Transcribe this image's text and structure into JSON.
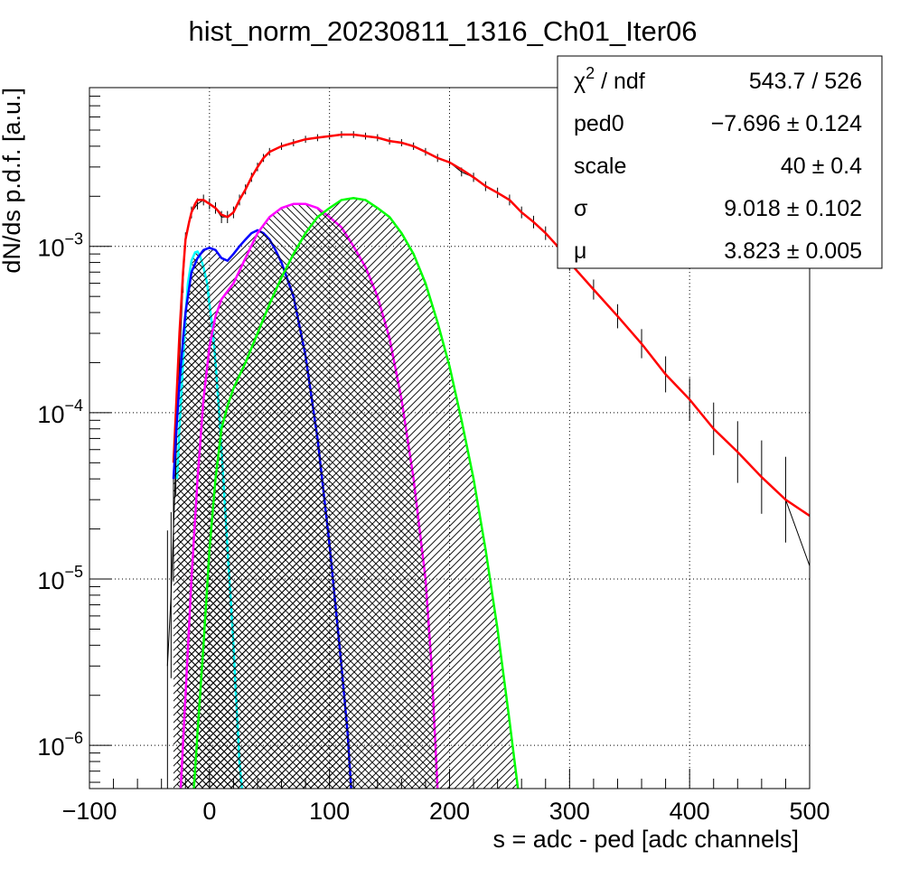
{
  "chart_data": {
    "type": "line",
    "title": "hist_norm_20230811_1316_Ch01_Iter06",
    "xlabel": "s = adc - ped [adc channels]",
    "ylabel": "dN/ds p.d.f. [a.u.]",
    "xlim": [
      -100,
      500
    ],
    "ylim": [
      5.5e-07,
      0.009
    ],
    "yscale": "log",
    "grid": true,
    "x_ticks": [
      {
        "value": -100,
        "label": "−100"
      },
      {
        "value": 0,
        "label": "0"
      },
      {
        "value": 100,
        "label": "100"
      },
      {
        "value": 200,
        "label": "200"
      },
      {
        "value": 300,
        "label": "300"
      },
      {
        "value": 400,
        "label": "400"
      },
      {
        "value": 500,
        "label": "500"
      }
    ],
    "y_ticks": [
      {
        "value": 1e-06,
        "base": "10",
        "exp": "−6"
      },
      {
        "value": 1e-05,
        "base": "10",
        "exp": "−5"
      },
      {
        "value": 0.0001,
        "base": "10",
        "exp": "−4"
      },
      {
        "value": 0.001,
        "base": "10",
        "exp": "−3"
      }
    ],
    "series": [
      {
        "role": "data",
        "color": "#000000",
        "x": [
          -35,
          -32,
          -30,
          -28,
          -25,
          -22,
          -20,
          -15,
          -10,
          -5,
          0,
          5,
          10,
          15,
          20,
          25,
          30,
          35,
          40,
          45,
          50,
          60,
          70,
          80,
          90,
          100,
          110,
          120,
          130,
          140,
          150,
          160,
          170,
          180,
          190,
          200,
          210,
          220,
          230,
          240,
          250,
          260,
          270,
          280,
          290,
          300,
          320,
          340,
          360,
          380,
          400,
          420,
          440,
          460,
          480,
          500
        ],
        "y": [
          3e-06,
          8e-06,
          2e-05,
          5e-05,
          0.0002,
          0.0006,
          0.0011,
          0.0016,
          0.0018,
          0.0019,
          0.0018,
          0.0017,
          0.0015,
          0.0015,
          0.0016,
          0.0019,
          0.0022,
          0.0026,
          0.003,
          0.0034,
          0.0037,
          0.004,
          0.0042,
          0.0044,
          0.0045,
          0.0046,
          0.0047,
          0.0047,
          0.0046,
          0.0045,
          0.0043,
          0.0042,
          0.004,
          0.0037,
          0.0034,
          0.0032,
          0.0028,
          0.0026,
          0.0023,
          0.0021,
          0.0019,
          0.0016,
          0.0014,
          0.0012,
          0.001,
          0.0008,
          0.00055,
          0.00038,
          0.00026,
          0.00017,
          0.00012,
          8e-05,
          5.8e-05,
          4.1e-05,
          3e-05,
          1.2e-05
        ]
      },
      {
        "role": "total fit",
        "color": "#ff0000",
        "x": [
          -30,
          -28,
          -25,
          -22,
          -20,
          -17,
          -15,
          -12,
          -10,
          -5,
          0,
          5,
          10,
          15,
          20,
          25,
          30,
          35,
          40,
          45,
          50,
          60,
          70,
          80,
          90,
          100,
          110,
          120,
          130,
          140,
          150,
          160,
          170,
          180,
          190,
          200,
          210,
          220,
          230,
          240,
          250,
          260,
          270,
          280,
          290,
          300,
          320,
          340,
          360,
          380,
          400,
          420,
          440,
          460,
          480,
          500
        ],
        "y": [
          5e-05,
          0.0001,
          0.0003,
          0.0007,
          0.0011,
          0.0014,
          0.0016,
          0.0018,
          0.0019,
          0.0019,
          0.0018,
          0.0017,
          0.00155,
          0.0015,
          0.0016,
          0.0019,
          0.0022,
          0.0026,
          0.003,
          0.0034,
          0.0037,
          0.004,
          0.0042,
          0.0044,
          0.0045,
          0.0046,
          0.0047,
          0.0047,
          0.0046,
          0.0045,
          0.0043,
          0.0042,
          0.004,
          0.0037,
          0.0034,
          0.0032,
          0.0029,
          0.0026,
          0.0023,
          0.0021,
          0.0019,
          0.0016,
          0.0014,
          0.0012,
          0.001,
          0.0008,
          0.00055,
          0.00038,
          0.00026,
          0.00017,
          0.00012,
          8e-05,
          5.8e-05,
          4.1e-05,
          3e-05,
          2.4e-05
        ]
      },
      {
        "role": "component",
        "color": "#00ffff",
        "fill": "#00ffff",
        "hatch": "cross",
        "x": [
          -27,
          -25,
          -22,
          -20,
          -18,
          -15,
          -12,
          -10,
          -8,
          -5,
          -2,
          0,
          3,
          5,
          8,
          10,
          12,
          15,
          18,
          20,
          22,
          25,
          27
        ],
        "y": [
          4e-05,
          8e-05,
          0.0002,
          0.00038,
          0.0006,
          0.00082,
          0.00092,
          0.00093,
          0.00088,
          0.00075,
          0.0006,
          0.00045,
          0.0003,
          0.0002,
          0.0001,
          6e-05,
          3.5e-05,
          1.5e-05,
          7e-06,
          4e-06,
          2e-06,
          8e-07,
          5.5e-07
        ]
      },
      {
        "role": "component",
        "color": "#0000ff",
        "fill": "#0000ff",
        "hatch": "diag-left",
        "x": [
          -30,
          -28,
          -25,
          -22,
          -20,
          -15,
          -10,
          -5,
          0,
          5,
          10,
          15,
          20,
          25,
          30,
          35,
          40,
          45,
          50,
          55,
          60,
          70,
          80,
          90,
          100,
          110,
          115,
          118
        ],
        "y": [
          4e-05,
          7e-05,
          0.00015,
          0.00028,
          0.0004,
          0.0007,
          0.00085,
          0.00095,
          0.00098,
          0.00095,
          0.00085,
          0.00082,
          0.0009,
          0.001,
          0.0011,
          0.0012,
          0.00125,
          0.0012,
          0.0011,
          0.00095,
          0.0008,
          0.0005,
          0.00022,
          7e-05,
          1.6e-05,
          3e-06,
          1.2e-06,
          5.5e-07
        ]
      },
      {
        "role": "component",
        "color": "#ff00ff",
        "fill": "#ff00ff",
        "hatch": "diag-right",
        "x": [
          -24,
          -20,
          -15,
          -10,
          -5,
          0,
          5,
          10,
          20,
          30,
          40,
          50,
          60,
          70,
          80,
          90,
          100,
          110,
          120,
          130,
          140,
          150,
          160,
          170,
          180,
          185,
          190
        ],
        "y": [
          5.5e-07,
          2e-06,
          1e-05,
          4e-05,
          0.00012,
          0.00025,
          0.00038,
          0.00048,
          0.0006,
          0.00085,
          0.0012,
          0.0015,
          0.0017,
          0.0018,
          0.0018,
          0.0017,
          0.0015,
          0.0013,
          0.001,
          0.00075,
          0.0005,
          0.00028,
          0.00012,
          4e-05,
          1e-05,
          3e-06,
          5.5e-07
        ]
      },
      {
        "role": "component",
        "color": "#00ff00",
        "fill": "#00ff00",
        "hatch": "diag-left",
        "x": [
          -13,
          -10,
          -5,
          0,
          5,
          10,
          15,
          20,
          30,
          40,
          50,
          60,
          70,
          80,
          90,
          100,
          110,
          120,
          130,
          140,
          150,
          160,
          170,
          180,
          190,
          200,
          210,
          220,
          230,
          240,
          250,
          257
        ],
        "y": [
          5.5e-07,
          1.2e-06,
          4e-06,
          1.5e-05,
          4e-05,
          8e-05,
          0.00011,
          0.00014,
          0.0002,
          0.0003,
          0.00045,
          0.00065,
          0.0009,
          0.0012,
          0.0015,
          0.0017,
          0.0019,
          0.00195,
          0.0019,
          0.0017,
          0.0015,
          0.0012,
          0.0009,
          0.0006,
          0.00035,
          0.00019,
          9e-05,
          4e-05,
          1.5e-05,
          5e-06,
          1.4e-06,
          5.5e-07
        ]
      }
    ],
    "stats_box": {
      "rows": [
        {
          "name": "χ",
          "sup": "2",
          "name_suffix": " / ndf",
          "value": "543.7 / 526"
        },
        {
          "name": "ped0",
          "sup": "",
          "name_suffix": "",
          "value": "−7.696 ± 0.124"
        },
        {
          "name": "scale",
          "sup": "",
          "name_suffix": "",
          "value": "40 ± 0.4"
        },
        {
          "name": "σ",
          "sup": "",
          "name_suffix": "",
          "value": "9.018 ± 0.102"
        },
        {
          "name": "μ",
          "sup": "",
          "name_suffix": "",
          "value": "3.823 ± 0.005"
        }
      ]
    }
  }
}
